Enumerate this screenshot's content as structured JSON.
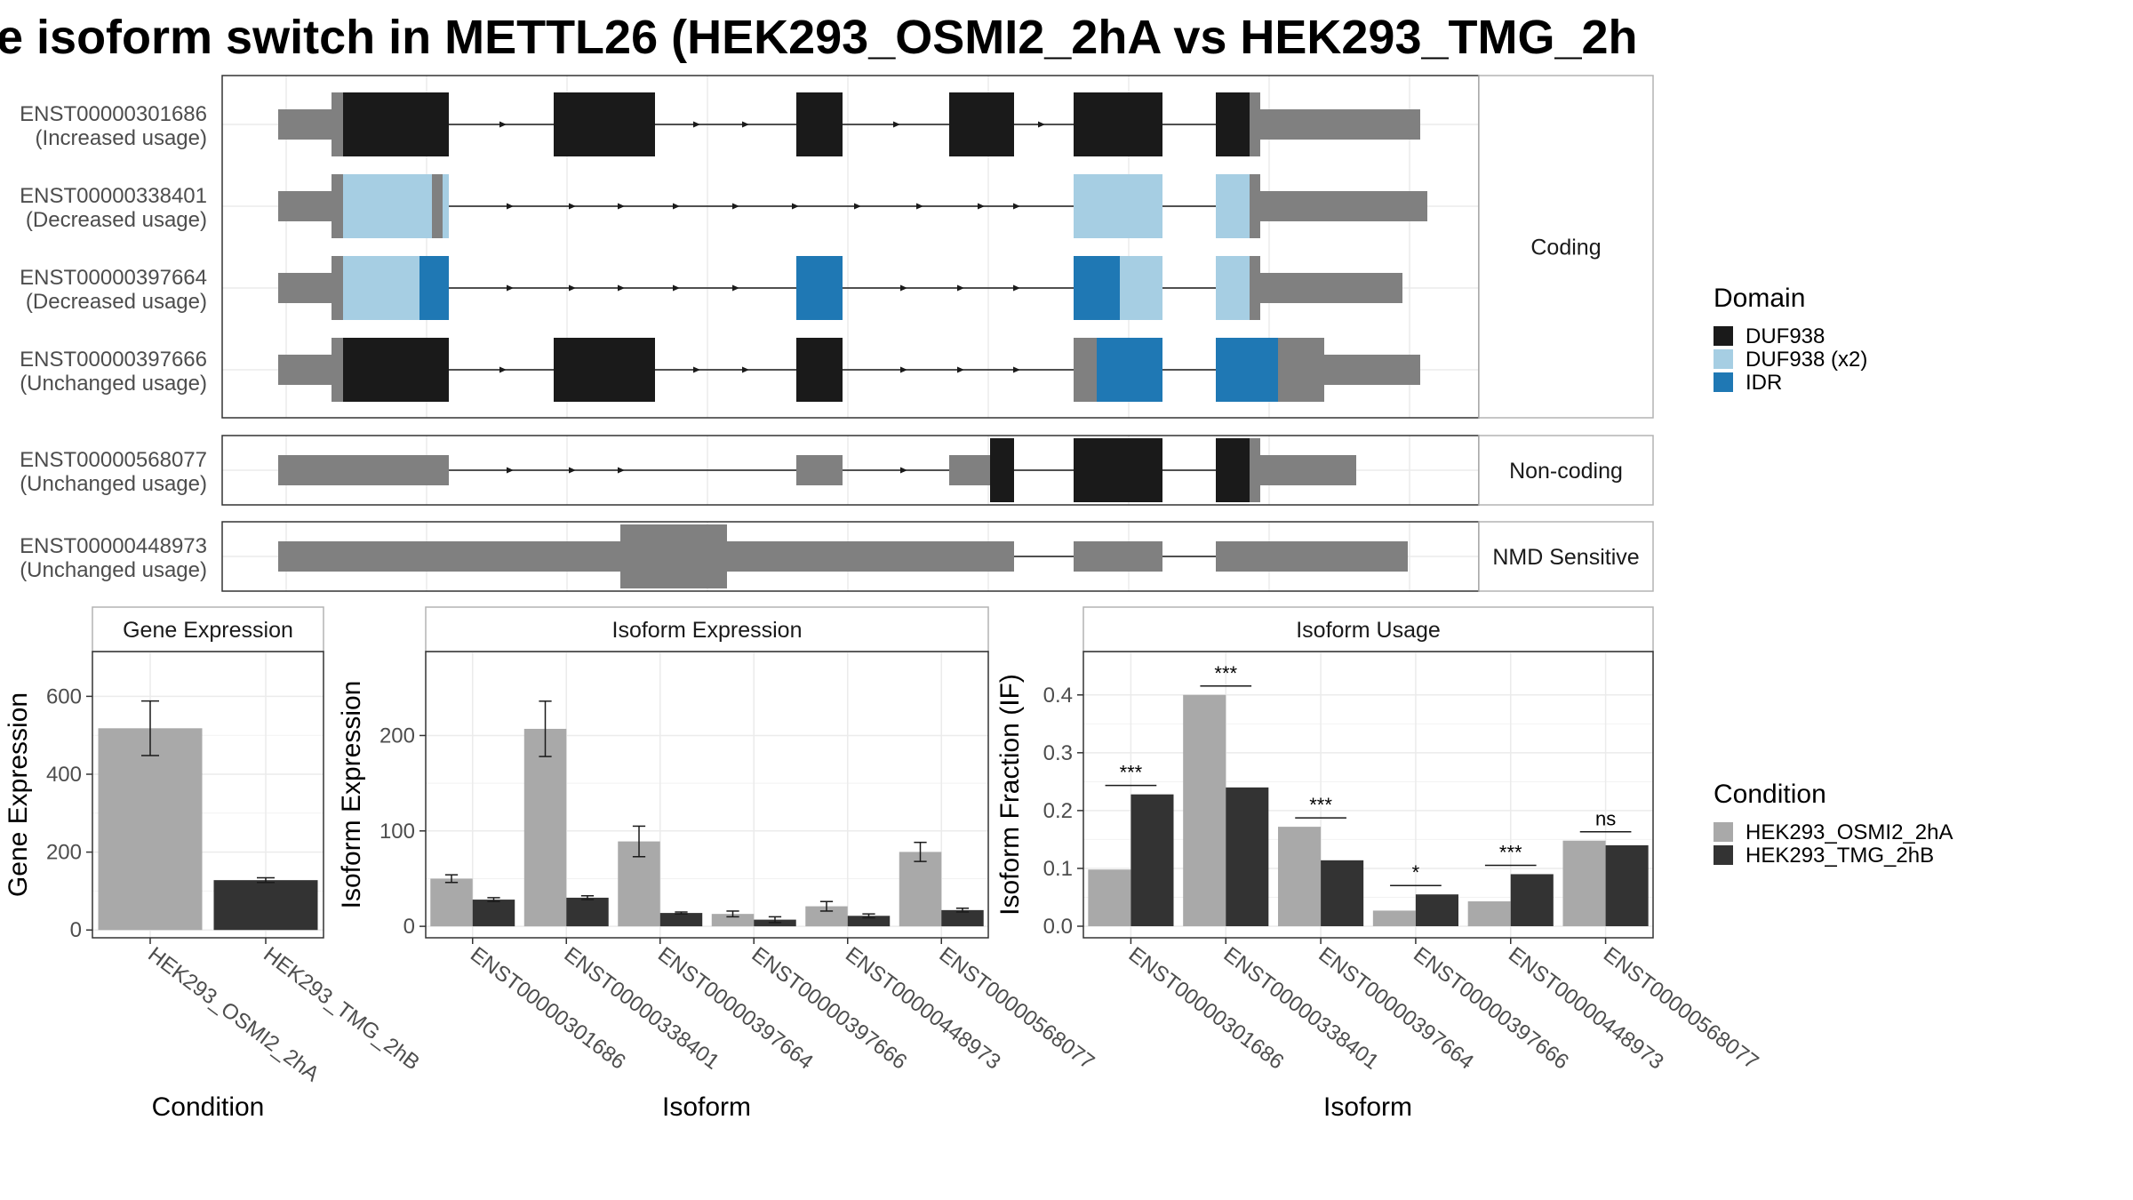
{
  "title": "e isoform switch in METTL26 (HEK293_OSMI2_2hA vs HEK293_TMG_2h",
  "colors": {
    "utr": "#808080",
    "duf938": "#1a1a1a",
    "duf938x2": "#a6cee3",
    "idr": "#1f78b4",
    "cond_a": "#a9a9a9",
    "cond_b": "#333333",
    "grid": "#ebebeb",
    "panel_border": "#333333",
    "strip_border": "#b3b3b3"
  },
  "structure": {
    "groups": [
      {
        "label": "Coding"
      },
      {
        "label": "Non-coding"
      },
      {
        "label": "NMD Sensitive"
      }
    ],
    "transcripts": [
      {
        "id": "ENST00000301686",
        "usage": "(Increased usage)"
      },
      {
        "id": "ENST00000338401",
        "usage": "(Decreased usage)"
      },
      {
        "id": "ENST00000397664",
        "usage": "(Decreased usage)"
      },
      {
        "id": "ENST00000397666",
        "usage": "(Unchanged usage)"
      },
      {
        "id": "ENST00000568077",
        "usage": "(Unchanged usage)"
      },
      {
        "id": "ENST00000448973",
        "usage": "(Unchanged usage)"
      }
    ]
  },
  "legend_domain": {
    "title": "Domain",
    "items": [
      {
        "label": "DUF938",
        "color": "#1a1a1a"
      },
      {
        "label": "DUF938 (x2)",
        "color": "#a6cee3"
      },
      {
        "label": "IDR",
        "color": "#1f78b4"
      }
    ]
  },
  "legend_condition": {
    "title": "Condition",
    "items": [
      {
        "label": "HEK293_OSMI2_2hA",
        "color": "#a9a9a9"
      },
      {
        "label": "HEK293_TMG_2hB",
        "color": "#333333"
      }
    ]
  },
  "chart_data": [
    {
      "type": "bar",
      "title": "Gene Expression",
      "xlabel": "Condition",
      "ylabel": "Gene Expression",
      "categories": [
        "HEK293_OSMI2_2hA",
        "HEK293_TMG_2hB"
      ],
      "values": [
        518,
        128
      ],
      "error_low": [
        448,
        122
      ],
      "error_high": [
        588,
        134
      ],
      "ylim": [
        -20,
        715
      ],
      "yticks": [
        0,
        200,
        400,
        600
      ]
    },
    {
      "type": "bar",
      "title": "Isoform Expression",
      "xlabel": "Isoform",
      "ylabel": "Isoform Expression",
      "categories": [
        "ENST00000301686",
        "ENST00000338401",
        "ENST00000397664",
        "ENST00000397666",
        "ENST00000448973",
        "ENST00000568077"
      ],
      "series": [
        {
          "name": "HEK293_OSMI2_2hA",
          "values": [
            50,
            207,
            89,
            13,
            21,
            78
          ],
          "error_low": [
            46,
            178,
            73,
            10,
            16,
            68
          ],
          "error_high": [
            54,
            236,
            105,
            16,
            26,
            88
          ]
        },
        {
          "name": "HEK293_TMG_2hB",
          "values": [
            28,
            30,
            14,
            7,
            11,
            17
          ],
          "error_low": [
            26,
            28,
            13,
            4,
            9,
            15
          ],
          "error_high": [
            30,
            32,
            15,
            10,
            13,
            19
          ]
        }
      ],
      "ylim": [
        -12,
        288
      ],
      "yticks": [
        0,
        100,
        200
      ]
    },
    {
      "type": "bar",
      "title": "Isoform Usage",
      "xlabel": "Isoform",
      "ylabel": "Isoform Fraction (IF)",
      "categories": [
        "ENST00000301686",
        "ENST00000338401",
        "ENST00000397664",
        "ENST00000397666",
        "ENST00000448973",
        "ENST00000568077"
      ],
      "series": [
        {
          "name": "HEK293_OSMI2_2hA",
          "values": [
            0.098,
            0.4,
            0.172,
            0.027,
            0.043,
            0.148
          ]
        },
        {
          "name": "HEK293_TMG_2hB",
          "values": [
            0.228,
            0.24,
            0.114,
            0.055,
            0.09,
            0.14
          ]
        }
      ],
      "significance": [
        "***",
        "***",
        "***",
        "*",
        "***",
        "ns"
      ],
      "ylim": [
        -0.02,
        0.475
      ],
      "yticks": [
        0.0,
        0.1,
        0.2,
        0.3,
        0.4
      ],
      "ytick_labels": [
        "0.0",
        "0.1",
        "0.2",
        "0.3",
        "0.4"
      ]
    }
  ]
}
